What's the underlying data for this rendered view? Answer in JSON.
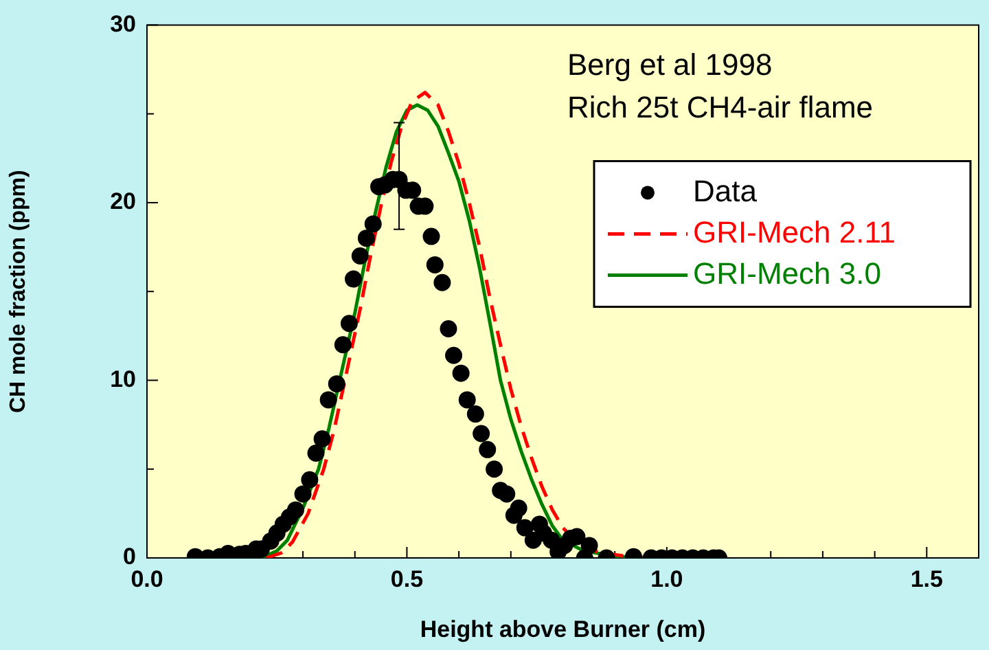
{
  "chart_data": {
    "type": "line",
    "xlabel": "Height above Burner (cm)",
    "ylabel": "CH mole fraction (ppm)",
    "annotations": [
      "Berg et al 1998",
      "Rich 25t CH4-air flame"
    ],
    "xlim": [
      0,
      1.6
    ],
    "ylim": [
      0,
      30
    ],
    "xticks": [
      {
        "value": 0,
        "label": "0.0"
      },
      {
        "value": 0.1,
        "label": null
      },
      {
        "value": 0.2,
        "label": null
      },
      {
        "value": 0.3,
        "label": null
      },
      {
        "value": 0.4,
        "label": null
      },
      {
        "value": 0.5,
        "label": "0.5"
      },
      {
        "value": 0.6,
        "label": null
      },
      {
        "value": 0.7,
        "label": null
      },
      {
        "value": 0.8,
        "label": null
      },
      {
        "value": 0.9,
        "label": null
      },
      {
        "value": 1,
        "label": "1.0"
      },
      {
        "value": 1.1,
        "label": null
      },
      {
        "value": 1.2,
        "label": null
      },
      {
        "value": 1.3,
        "label": null
      },
      {
        "value": 1.4,
        "label": null
      },
      {
        "value": 1.5,
        "label": "1.5"
      }
    ],
    "yticks": [
      0,
      {
        "value": 5,
        "label": null
      },
      10,
      {
        "value": 15,
        "label": null
      },
      20,
      {
        "value": 25,
        "label": null
      },
      30
    ],
    "grid": false,
    "legend": "top right",
    "series": [
      {
        "name": "Data",
        "type": "scatter",
        "marker": "circle",
        "color": "#000000",
        "x": [
          0.093,
          0.117,
          0.14,
          0.156,
          0.178,
          0.19,
          0.21,
          0.22,
          0.238,
          0.25,
          0.262,
          0.274,
          0.286,
          0.3,
          0.313,
          0.325,
          0.337,
          0.349,
          0.365,
          0.377,
          0.389,
          0.397,
          0.41,
          0.422,
          0.435,
          0.446,
          0.458,
          0.473,
          0.485,
          0.498,
          0.511,
          0.522,
          0.535,
          0.547,
          0.554,
          0.568,
          0.58,
          0.59,
          0.604,
          0.616,
          0.632,
          0.643,
          0.655,
          0.668,
          0.68,
          0.692,
          0.706,
          0.715,
          0.727,
          0.743,
          0.755,
          0.763,
          0.778,
          0.791,
          0.803,
          0.815,
          0.827,
          0.842,
          0.851,
          0.884,
          0.936,
          0.97,
          0.99,
          1.01,
          1.03,
          1.05,
          1.07,
          1.09,
          1.1
        ],
        "values": [
          0.07,
          0,
          0.07,
          0.25,
          0.2,
          0.25,
          0.5,
          0.5,
          0.95,
          1.4,
          1.9,
          2.3,
          2.7,
          3.6,
          4.4,
          5.9,
          6.7,
          8.9,
          9.8,
          12,
          13.2,
          15.7,
          17,
          18,
          18.8,
          20.9,
          21,
          21.3,
          21.3,
          20.7,
          20.7,
          19.8,
          19.8,
          18.1,
          16.5,
          15.5,
          12.9,
          11.4,
          10.4,
          8.9,
          8.1,
          7,
          6.1,
          5,
          3.8,
          3.6,
          2.4,
          2.8,
          1.7,
          1,
          1.9,
          1.4,
          1,
          0.35,
          0.7,
          1.1,
          1.2,
          0,
          0.7,
          0,
          0.07,
          0,
          0,
          0,
          0,
          0,
          0,
          0,
          0
        ],
        "errors": [
          null,
          null,
          null,
          null,
          null,
          null,
          null,
          null,
          null,
          null,
          null,
          null,
          null,
          null,
          null,
          null,
          null,
          null,
          null,
          null,
          null,
          null,
          null,
          null,
          null,
          null,
          null,
          null,
          [
            18.5,
            24.5
          ],
          null,
          null,
          null,
          null,
          null,
          null,
          null,
          null,
          null,
          null,
          null,
          null,
          null,
          null,
          null,
          null,
          null,
          null,
          null,
          null,
          null,
          null,
          null,
          null,
          null,
          null,
          null,
          null,
          null,
          null,
          null,
          null,
          null,
          null,
          null,
          null,
          null,
          null,
          null,
          null
        ]
      },
      {
        "name": "GRI-Mech 2.11",
        "type": "line",
        "line_style": "dashed",
        "marker": "none",
        "color": "#ff0000",
        "x": [
          0.23,
          0.26,
          0.28,
          0.31,
          0.34,
          0.36,
          0.38,
          0.41,
          0.43,
          0.45,
          0.47,
          0.49,
          0.51,
          0.535,
          0.56,
          0.58,
          0.6,
          0.62,
          0.64,
          0.66,
          0.68,
          0.7,
          0.72,
          0.74,
          0.76,
          0.78,
          0.8,
          0.83,
          0.87,
          0.92,
          0.97
        ],
        "values": [
          0,
          0.3,
          0.9,
          2.5,
          5,
          7.2,
          9.9,
          14,
          17,
          19.8,
          22.3,
          24.3,
          25.7,
          26.2,
          25.5,
          24,
          22.2,
          20,
          17.5,
          14.6,
          12,
          9.5,
          7.4,
          5.6,
          4,
          2.7,
          1.7,
          0.8,
          0.3,
          0.1,
          0
        ]
      },
      {
        "name": "GRI-Mech 3.0",
        "type": "line",
        "line_style": "solid",
        "marker": "none",
        "color": "#008000",
        "x": [
          0.22,
          0.25,
          0.27,
          0.3,
          0.33,
          0.35,
          0.37,
          0.4,
          0.42,
          0.44,
          0.46,
          0.48,
          0.5,
          0.52,
          0.54,
          0.56,
          0.58,
          0.6,
          0.62,
          0.64,
          0.66,
          0.68,
          0.7,
          0.72,
          0.74,
          0.76,
          0.78,
          0.8,
          0.84,
          0.9,
          0.95
        ],
        "values": [
          0,
          0.4,
          1,
          2.8,
          5,
          7.3,
          9.9,
          13.8,
          16.8,
          19.5,
          22,
          24,
          25.2,
          25.5,
          25.2,
          24.3,
          22.8,
          21.2,
          19,
          16.3,
          13.2,
          10,
          7.8,
          6,
          4.4,
          3,
          1.8,
          1,
          0.4,
          0.1,
          0
        ]
      }
    ]
  }
}
